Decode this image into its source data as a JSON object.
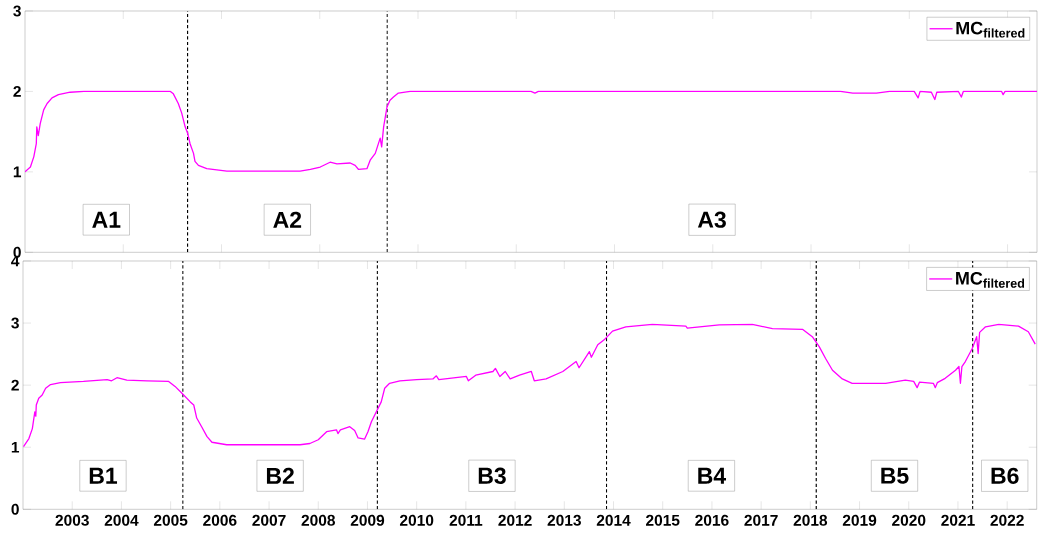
{
  "chart_data": [
    {
      "type": "line",
      "x": [
        2002.0,
        2002.11,
        2002.18,
        2002.23,
        2002.24,
        2002.27,
        2002.31,
        2002.38,
        2002.45,
        2002.55,
        2002.68,
        2002.92,
        2003.2,
        2004.96,
        2005.02,
        2005.12,
        2005.19,
        2005.26,
        2005.31,
        2005.36,
        2005.43,
        2005.46,
        2005.53,
        2005.7,
        2006.11,
        2007.6,
        2007.81,
        2008.01,
        2008.21,
        2008.35,
        2008.62,
        2008.72,
        2008.79,
        2008.96,
        2009.03,
        2009.13,
        2009.23,
        2009.26,
        2009.3,
        2009.37,
        2009.43,
        2009.5,
        2009.6,
        2009.84,
        2012.3,
        2012.38,
        2012.45,
        2018.6,
        2018.85,
        2019.33,
        2019.6,
        2020.1,
        2020.18,
        2020.22,
        2020.45,
        2020.52,
        2020.56,
        2021.0,
        2021.06,
        2021.1,
        2021.88,
        2021.91,
        2021.95,
        2022.6
      ],
      "series": [
        {
          "name": "MC$_{filtered}$",
          "color": "#ff00ff",
          "values": [
            1.0,
            1.06,
            1.19,
            1.35,
            1.56,
            1.45,
            1.6,
            1.77,
            1.85,
            1.92,
            1.96,
            1.99,
            2.0,
            2.0,
            1.97,
            1.85,
            1.73,
            1.56,
            1.48,
            1.35,
            1.23,
            1.13,
            1.08,
            1.04,
            1.01,
            1.01,
            1.03,
            1.06,
            1.12,
            1.1,
            1.11,
            1.08,
            1.03,
            1.04,
            1.15,
            1.23,
            1.42,
            1.31,
            1.56,
            1.81,
            1.89,
            1.93,
            1.98,
            2.0,
            2.0,
            1.98,
            2.0,
            2.0,
            1.98,
            1.98,
            2.0,
            2.0,
            1.92,
            2.0,
            1.99,
            1.9,
            1.99,
            2.0,
            1.93,
            2.0,
            2.0,
            1.96,
            2.0,
            2.0
          ]
        }
      ],
      "xlim": [
        2002,
        2022.6
      ],
      "xticks": [
        2004,
        2006,
        2008,
        2010,
        2012,
        2014,
        2016,
        2018,
        2020,
        2022
      ],
      "ylim": [
        0,
        3
      ],
      "yticks": [
        0,
        1,
        2,
        3
      ],
      "tick_labels": "y",
      "legend": "top right",
      "ref_lines": [
        {
          "axis": "x",
          "value": 2005.31,
          "color": "#000000",
          "line_style": "dashed"
        },
        {
          "axis": "x",
          "value": 2009.37,
          "color": "#000000",
          "line_style": "dashed"
        }
      ],
      "annotations": [
        "A1",
        "A2",
        "A3"
      ]
    },
    {
      "type": "line",
      "x": [
        2002.01,
        2002.12,
        2002.19,
        2002.24,
        2002.26,
        2002.27,
        2002.32,
        2002.39,
        2002.46,
        2002.56,
        2002.76,
        2003.23,
        2003.71,
        2003.8,
        2003.91,
        2004.11,
        2004.52,
        2004.96,
        2005.09,
        2005.23,
        2005.4,
        2005.47,
        2005.53,
        2005.63,
        2005.74,
        2005.84,
        2006.14,
        2007.63,
        2007.83,
        2008.0,
        2008.17,
        2008.37,
        2008.4,
        2008.45,
        2008.64,
        2008.74,
        2008.81,
        2008.94,
        2009.01,
        2009.08,
        2009.18,
        2009.28,
        2009.35,
        2009.45,
        2009.66,
        2010.0,
        2010.33,
        2010.4,
        2010.45,
        2011.01,
        2011.05,
        2011.2,
        2011.55,
        2011.6,
        2011.69,
        2011.8,
        2011.9,
        2012.09,
        2012.33,
        2012.39,
        2012.63,
        2012.97,
        2013.24,
        2013.3,
        2013.51,
        2013.55,
        2013.68,
        2013.81,
        2013.98,
        2014.25,
        2014.79,
        2015.47,
        2015.5,
        2016.15,
        2016.82,
        2017.23,
        2017.84,
        2018.04,
        2018.18,
        2018.31,
        2018.45,
        2018.65,
        2018.85,
        2019.53,
        2019.93,
        2020.1,
        2020.17,
        2020.22,
        2020.5,
        2020.54,
        2020.58,
        2020.74,
        2020.95,
        2021.02,
        2021.05,
        2021.08,
        2021.15,
        2021.29,
        2021.38,
        2021.41,
        2021.44,
        2021.56,
        2021.83,
        2022.23,
        2022.43,
        2022.57
      ],
      "series": [
        {
          "name": "MC$_{filtered}$",
          "color": "#ff00ff",
          "values": [
            1.01,
            1.14,
            1.3,
            1.57,
            1.5,
            1.68,
            1.79,
            1.84,
            1.95,
            2.01,
            2.04,
            2.06,
            2.09,
            2.07,
            2.12,
            2.08,
            2.07,
            2.06,
            1.98,
            1.87,
            1.73,
            1.68,
            1.47,
            1.33,
            1.17,
            1.08,
            1.04,
            1.04,
            1.06,
            1.12,
            1.25,
            1.28,
            1.22,
            1.28,
            1.33,
            1.27,
            1.15,
            1.13,
            1.25,
            1.41,
            1.57,
            1.73,
            1.95,
            2.03,
            2.07,
            2.09,
            2.1,
            2.15,
            2.09,
            2.14,
            2.07,
            2.16,
            2.22,
            2.27,
            2.14,
            2.22,
            2.1,
            2.16,
            2.22,
            2.07,
            2.1,
            2.22,
            2.38,
            2.28,
            2.54,
            2.45,
            2.65,
            2.73,
            2.87,
            2.94,
            2.98,
            2.95,
            2.92,
            2.97,
            2.98,
            2.91,
            2.9,
            2.78,
            2.62,
            2.43,
            2.24,
            2.1,
            2.03,
            2.03,
            2.08,
            2.06,
            1.96,
            2.05,
            2.03,
            1.96,
            2.04,
            2.11,
            2.24,
            2.3,
            2.03,
            2.3,
            2.38,
            2.59,
            2.78,
            2.51,
            2.85,
            2.94,
            2.98,
            2.95,
            2.86,
            2.66
          ]
        }
      ],
      "xlim": [
        2002,
        2022.6
      ],
      "xticks": [
        2003,
        2004,
        2005,
        2006,
        2007,
        2008,
        2009,
        2010,
        2011,
        2012,
        2013,
        2014,
        2015,
        2016,
        2017,
        2018,
        2019,
        2020,
        2021,
        2022
      ],
      "ylim": [
        0,
        4
      ],
      "yticks": [
        0,
        1,
        2,
        3,
        4
      ],
      "legend": "top right",
      "ref_lines": [
        {
          "axis": "x",
          "value": 2005.25,
          "color": "#000000",
          "line_style": "dashed"
        },
        {
          "axis": "x",
          "value": 2009.2,
          "color": "#000000",
          "line_style": "dashed"
        },
        {
          "axis": "x",
          "value": 2013.86,
          "color": "#000000",
          "line_style": "dashed"
        },
        {
          "axis": "x",
          "value": 2018.12,
          "color": "#000000",
          "line_style": "dashed"
        },
        {
          "axis": "x",
          "value": 2021.3,
          "color": "#000000",
          "line_style": "dashed"
        }
      ],
      "annotations": [
        "B1",
        "B2",
        "B3",
        "B4",
        "B5",
        "B6"
      ]
    }
  ]
}
